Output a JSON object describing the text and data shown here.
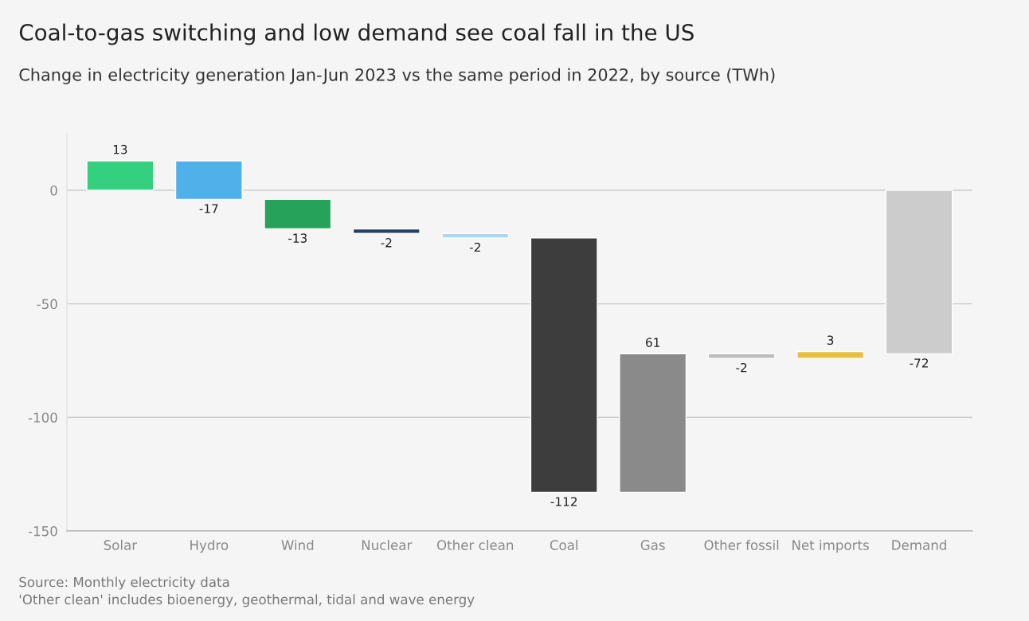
{
  "chart_data": {
    "type": "bar",
    "title": "Coal-to-gas switching and low demand see coal fall in the US",
    "subtitle": "Change in electricity generation Jan-Jun 2023 vs the same period in 2022, by source (TWh)",
    "categories": [
      "Solar",
      "Hydro",
      "Wind",
      "Nuclear",
      "Other clean",
      "Coal",
      "Gas",
      "Other fossil",
      "Net imports",
      "Demand"
    ],
    "values": [
      13,
      -17,
      -13,
      -2,
      -2,
      -112,
      61,
      -2,
      3,
      -72
    ],
    "base": [
      0,
      13,
      -4,
      -17,
      -19,
      -21,
      -133,
      -72,
      -74,
      0
    ],
    "colors": [
      "#34d07f",
      "#4fb0ea",
      "#27a25a",
      "#22406a",
      "#a9d8f5",
      "#3d3d3d",
      "#8a8a8a",
      "#bdbdbd",
      "#e8c040",
      "#cccccc"
    ],
    "ylim": [
      -150,
      25
    ],
    "yticks": [
      -150,
      -100,
      -50,
      0
    ],
    "grid": "y",
    "data_labels": true,
    "annotations": [
      "Source: Monthly electricity data",
      "'Other clean' includes bioenergy, geothermal, tidal and wave energy"
    ]
  }
}
